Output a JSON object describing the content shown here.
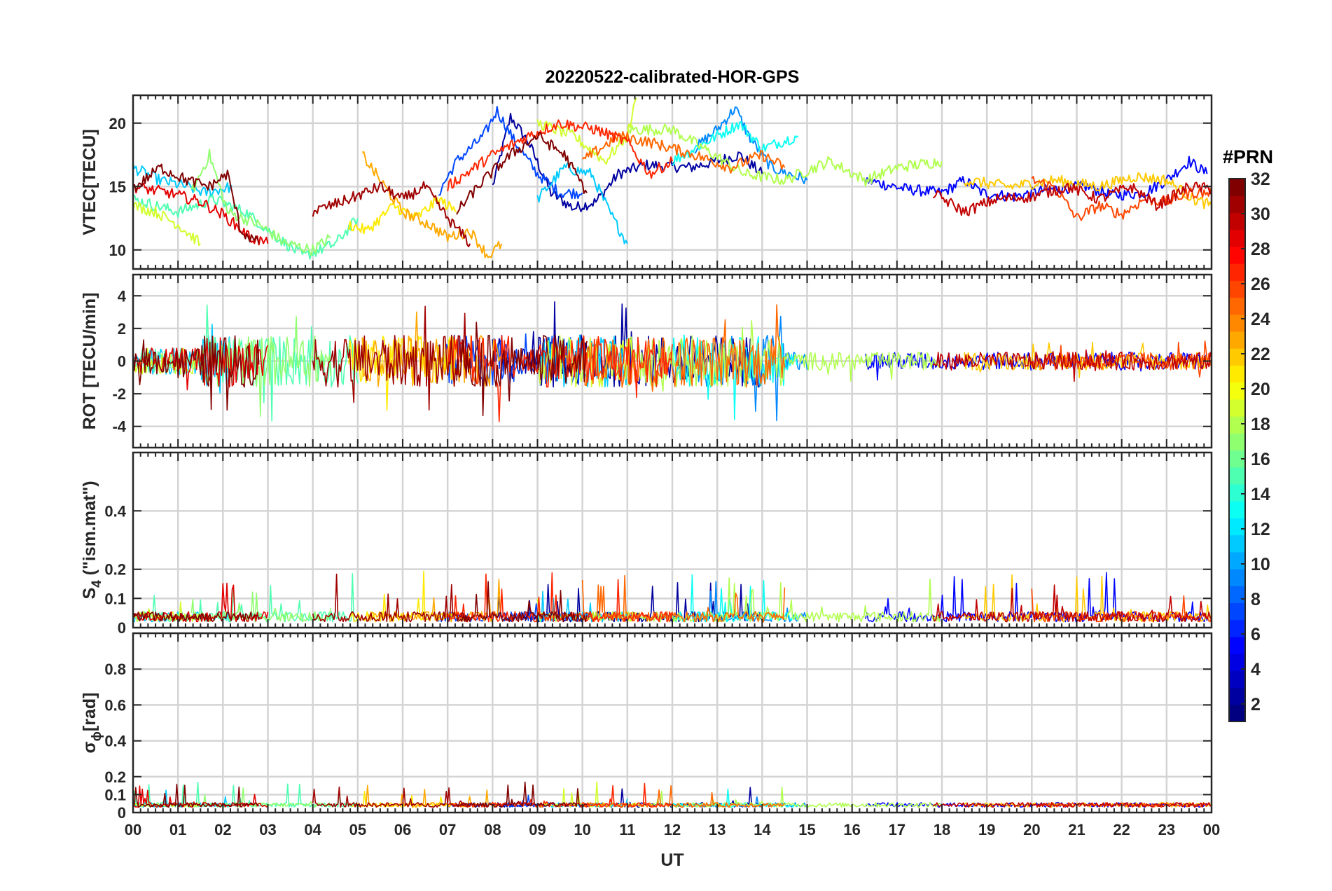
{
  "chart_data": {
    "type": "line",
    "title": "20220522-calibrated-HOR-GPS",
    "xlabel": "UT",
    "x_tick_labels": [
      "00",
      "01",
      "02",
      "03",
      "04",
      "05",
      "06",
      "07",
      "08",
      "09",
      "10",
      "11",
      "12",
      "13",
      "14",
      "15",
      "16",
      "17",
      "18",
      "19",
      "20",
      "21",
      "22",
      "23",
      "00"
    ],
    "xlim": [
      0,
      24
    ],
    "grid": true,
    "colormap": "jet",
    "colorbar": {
      "title": "#PRN",
      "range": [
        1,
        32
      ],
      "tick_labels": [
        "2",
        "4",
        "6",
        "8",
        "10",
        "12",
        "14",
        "16",
        "18",
        "20",
        "22",
        "24",
        "26",
        "28",
        "30",
        "32"
      ],
      "placement": "right"
    },
    "panels": [
      {
        "ylabel": "VTEC[TECU]",
        "ylim": [
          8.5,
          22.2
        ],
        "yticks": [
          10,
          15,
          20
        ],
        "y_tick_labels": [
          "10",
          "15",
          "20"
        ]
      },
      {
        "ylabel": "ROT [TECU/min]",
        "ylim": [
          -5.3,
          5.3
        ],
        "yticks": [
          -4,
          -2,
          0,
          2,
          4
        ],
        "y_tick_labels": [
          "-4",
          "-2",
          "0",
          "2",
          "4"
        ]
      },
      {
        "ylabel_main": "S",
        "ylabel_sub": "4",
        "ylabel_rest": " (\"ism.mat\")",
        "ylim": [
          0,
          0.6
        ],
        "yticks": [
          0,
          0.1,
          0.2,
          0.4
        ],
        "y_tick_labels": [
          "0",
          "0.1",
          "0.2",
          "0.4"
        ]
      },
      {
        "ylabel_main": "σ",
        "ylabel_sub": "ϕ",
        "ylabel_rest": "[rad]",
        "ylim": [
          0,
          1
        ],
        "yticks": [
          0,
          0.1,
          0.2,
          0.4,
          0.6,
          0.8
        ],
        "y_tick_labels": [
          "0",
          "0.1",
          "0.2",
          "0.4",
          "0.6",
          "0.8"
        ]
      }
    ],
    "series": [
      {
        "prn": 2,
        "vtec": [
          [
            8.0,
            15.0
          ],
          [
            8.4,
            20.5
          ],
          [
            8.8,
            18.5
          ],
          [
            9.3,
            14.5
          ],
          [
            9.8,
            13.3
          ],
          [
            10.3,
            13.8
          ],
          [
            10.8,
            16.0
          ],
          [
            11.4,
            16.7
          ],
          [
            12.4,
            16.5
          ],
          [
            13.0,
            17.0
          ],
          [
            13.5,
            17.5
          ],
          [
            14.0,
            16.0
          ]
        ]
      },
      {
        "prn": 5,
        "vtec": [
          [
            16.3,
            15.5
          ],
          [
            17.2,
            14.8
          ],
          [
            18.0,
            14.5
          ],
          [
            18.5,
            15.5
          ],
          [
            18.9,
            14.5
          ],
          [
            19.6,
            14.2
          ],
          [
            20.4,
            14.8
          ],
          [
            21.2,
            15.0
          ],
          [
            21.8,
            14.3
          ],
          [
            22.5,
            14.5
          ],
          [
            23.0,
            15.5
          ],
          [
            23.5,
            17.0
          ],
          [
            23.9,
            16.0
          ]
        ]
      },
      {
        "prn": 7,
        "vtec": [
          [
            6.8,
            14.5
          ],
          [
            7.2,
            17.0
          ],
          [
            7.8,
            19.0
          ],
          [
            8.1,
            21.0
          ],
          [
            8.5,
            18.5
          ],
          [
            9.0,
            16.0
          ],
          [
            9.5,
            14.5
          ],
          [
            10.0,
            14.5
          ]
        ]
      },
      {
        "prn": 9,
        "vtec": [
          [
            12.5,
            18.0
          ],
          [
            13.0,
            19.5
          ],
          [
            13.4,
            21.2
          ],
          [
            13.7,
            19.0
          ],
          [
            14.2,
            16.5
          ],
          [
            15.0,
            15.5
          ]
        ]
      },
      {
        "prn": 11,
        "vtec": [
          [
            0.0,
            16.5
          ],
          [
            0.6,
            15.5
          ],
          [
            1.2,
            15.0
          ],
          [
            1.6,
            14.5
          ],
          [
            2.2,
            15.0
          ]
        ]
      },
      {
        "prn": 11,
        "vtec": [
          [
            9.0,
            14.0
          ],
          [
            9.6,
            16.5
          ],
          [
            10.2,
            16.0
          ],
          [
            10.6,
            13.0
          ],
          [
            11.0,
            10.5
          ]
        ]
      },
      {
        "prn": 13,
        "vtec": [
          [
            12.0,
            17.0
          ],
          [
            13.0,
            19.0
          ],
          [
            13.5,
            20.0
          ],
          [
            14.0,
            18.0
          ],
          [
            14.8,
            19.0
          ]
        ]
      },
      {
        "prn": 15,
        "vtec": [
          [
            0.0,
            14.0
          ],
          [
            1.0,
            13.0
          ],
          [
            1.8,
            14.0
          ],
          [
            2.5,
            13.0
          ],
          [
            3.2,
            11.0
          ],
          [
            3.8,
            9.5
          ],
          [
            4.5,
            10.5
          ],
          [
            5.0,
            12.5
          ]
        ]
      },
      {
        "prn": 17,
        "vtec": [
          [
            1.3,
            14.5
          ],
          [
            1.7,
            17.5
          ],
          [
            2.1,
            13.0
          ],
          [
            2.8,
            12.0
          ],
          [
            3.4,
            10.5
          ],
          [
            4.0,
            10.0
          ],
          [
            4.4,
            11.0
          ]
        ]
      },
      {
        "prn": 18,
        "vtec": [
          [
            11.0,
            19.5
          ],
          [
            12.0,
            19.5
          ],
          [
            12.7,
            18.0
          ],
          [
            13.6,
            16.0
          ],
          [
            14.5,
            15.5
          ],
          [
            15.5,
            17.0
          ],
          [
            16.3,
            15.5
          ],
          [
            17.0,
            16.5
          ],
          [
            18.0,
            17.0
          ]
        ]
      },
      {
        "prn": 19,
        "vtec": [
          [
            0.0,
            13.5
          ],
          [
            0.5,
            13.0
          ],
          [
            1.0,
            12.0
          ],
          [
            1.5,
            10.5
          ]
        ]
      },
      {
        "prn": 19,
        "vtec": [
          [
            9.0,
            20.0
          ],
          [
            9.8,
            19.0
          ],
          [
            10.5,
            17.0
          ],
          [
            11.0,
            19.0
          ],
          [
            11.2,
            22.0
          ]
        ]
      },
      {
        "prn": 21,
        "vtec": [
          [
            4.8,
            12.0
          ],
          [
            5.2,
            11.5
          ],
          [
            5.8,
            13.5
          ],
          [
            6.3,
            12.5
          ],
          [
            6.8,
            14.0
          ],
          [
            7.2,
            13.0
          ]
        ]
      },
      {
        "prn": 22,
        "vtec": [
          [
            18.5,
            15.5
          ],
          [
            19.5,
            15.0
          ],
          [
            20.5,
            15.5
          ],
          [
            21.5,
            15.0
          ],
          [
            22.3,
            15.8
          ],
          [
            23.0,
            15.5
          ],
          [
            23.6,
            14.0
          ],
          [
            24.0,
            13.5
          ]
        ]
      },
      {
        "prn": 23,
        "vtec": [
          [
            5.1,
            17.5
          ],
          [
            5.5,
            15.5
          ],
          [
            6.0,
            13.0
          ],
          [
            6.6,
            12.0
          ],
          [
            7.0,
            11.0
          ],
          [
            7.5,
            11.5
          ],
          [
            7.9,
            9.5
          ],
          [
            8.2,
            10.5
          ]
        ]
      },
      {
        "prn": 25,
        "vtec": [
          [
            10.0,
            17.0
          ],
          [
            10.8,
            19.0
          ],
          [
            11.5,
            18.5
          ],
          [
            12.5,
            17.5
          ],
          [
            13.3,
            16.5
          ],
          [
            14.0,
            17.5
          ],
          [
            14.5,
            16.5
          ]
        ]
      },
      {
        "prn": 26,
        "vtec": [
          [
            20.0,
            15.5
          ],
          [
            20.5,
            15.0
          ],
          [
            21.0,
            12.5
          ],
          [
            21.5,
            13.5
          ],
          [
            22.0,
            12.8
          ],
          [
            22.5,
            14.0
          ],
          [
            23.0,
            13.8
          ],
          [
            23.5,
            14.5
          ],
          [
            24.0,
            14.5
          ]
        ]
      },
      {
        "prn": 27,
        "vtec": [
          [
            7.0,
            15.0
          ],
          [
            8.0,
            17.5
          ],
          [
            8.8,
            19.0
          ],
          [
            9.5,
            20.0
          ],
          [
            10.3,
            19.5
          ],
          [
            11.0,
            18.5
          ],
          [
            11.5,
            16.0
          ],
          [
            12.0,
            17.0
          ]
        ]
      },
      {
        "prn": 29,
        "vtec": [
          [
            0.0,
            15.0
          ],
          [
            0.8,
            14.5
          ],
          [
            1.5,
            13.8
          ],
          [
            2.0,
            12.8
          ],
          [
            2.6,
            11.0
          ],
          [
            3.0,
            10.5
          ]
        ]
      },
      {
        "prn": 30,
        "vtec": [
          [
            17.8,
            14.5
          ],
          [
            18.5,
            13.0
          ],
          [
            19.2,
            14.0
          ],
          [
            20.0,
            14.2
          ],
          [
            20.8,
            15.0
          ],
          [
            21.5,
            14.0
          ],
          [
            22.2,
            15.0
          ],
          [
            22.8,
            13.5
          ],
          [
            23.5,
            15.0
          ],
          [
            24.0,
            14.8
          ]
        ]
      },
      {
        "prn": 31,
        "vtec": [
          [
            4.0,
            13.0
          ],
          [
            4.8,
            14.0
          ],
          [
            5.5,
            15.0
          ],
          [
            6.0,
            14.0
          ],
          [
            6.5,
            15.0
          ],
          [
            7.0,
            12.5
          ],
          [
            7.5,
            10.5
          ]
        ]
      },
      {
        "prn": 32,
        "vtec": [
          [
            0.0,
            14.8
          ],
          [
            0.6,
            16.5
          ],
          [
            1.2,
            15.5
          ],
          [
            1.7,
            15.0
          ],
          [
            2.1,
            16.0
          ],
          [
            2.4,
            11.5
          ],
          [
            2.8,
            10.5
          ]
        ]
      },
      {
        "prn": 32,
        "vtec": [
          [
            7.2,
            13.0
          ],
          [
            7.8,
            15.5
          ],
          [
            8.4,
            17.5
          ],
          [
            9.0,
            19.0
          ],
          [
            9.6,
            17.5
          ],
          [
            10.1,
            14.5
          ]
        ]
      }
    ]
  }
}
